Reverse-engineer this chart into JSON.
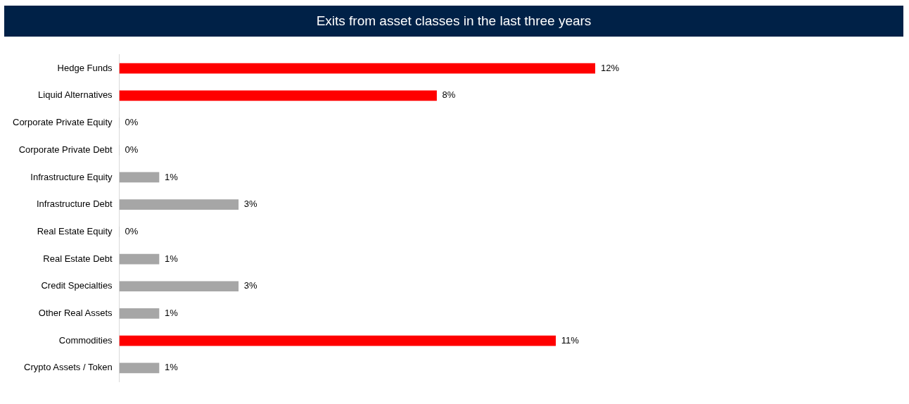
{
  "chart_data": {
    "type": "bar",
    "orientation": "horizontal",
    "title": "Exits from asset classes in the last three years",
    "categories": [
      "Hedge Funds",
      "Liquid Alternatives",
      "Corporate Private Equity",
      "Corporate Private Debt",
      "Infrastructure Equity",
      "Infrastructure Debt",
      "Real Estate Equity",
      "Real Estate Debt",
      "Credit Specialties",
      "Other Real Assets",
      "Commodities",
      "Crypto Assets / Token"
    ],
    "values": [
      12,
      8,
      0,
      0,
      1,
      3,
      0,
      1,
      3,
      1,
      11,
      1
    ],
    "colors": [
      "#ff0000",
      "#ff0000",
      "#a6a6a6",
      "#a6a6a6",
      "#a6a6a6",
      "#a6a6a6",
      "#a6a6a6",
      "#a6a6a6",
      "#a6a6a6",
      "#a6a6a6",
      "#ff0000",
      "#a6a6a6"
    ],
    "value_labels": [
      "12%",
      "8%",
      "0%",
      "0%",
      "1%",
      "3%",
      "0%",
      "1%",
      "3%",
      "1%",
      "11%",
      "1%"
    ],
    "legend": false
  }
}
